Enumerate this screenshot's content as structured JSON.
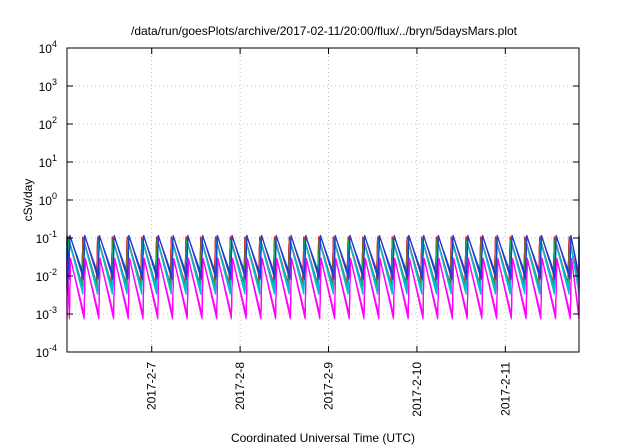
{
  "chart_data": {
    "type": "line",
    "title": "/data/run/goesPlots/archive/2017-02-11/20:00/flux/../bryn/5daysMars.plot",
    "xlabel": "Coordinated Universal Time (UTC)",
    "ylabel": "cSv/day",
    "yscale": "log",
    "ylim": [
      0.0001,
      10000
    ],
    "yticks": [
      {
        "value": 0.0001,
        "base": "10",
        "exp": "-4"
      },
      {
        "value": 0.001,
        "base": "10",
        "exp": "-3"
      },
      {
        "value": 0.01,
        "base": "10",
        "exp": "-2"
      },
      {
        "value": 0.1,
        "base": "10",
        "exp": "-1"
      },
      {
        "value": 1,
        "base": "10",
        "exp": "0"
      },
      {
        "value": 10,
        "base": "10",
        "exp": "1"
      },
      {
        "value": 100,
        "base": "10",
        "exp": "2"
      },
      {
        "value": 1000,
        "base": "10",
        "exp": "3"
      },
      {
        "value": 10000,
        "base": "10",
        "exp": "4"
      }
    ],
    "xlim": [
      "2017-02-06 01:00",
      "2017-02-11 20:00"
    ],
    "xticks": [
      "2017-2-7",
      "2017-2-8",
      "2017-2-9",
      "2017-2-10",
      "2017-2-11"
    ],
    "grid": true,
    "pattern": {
      "cycles_per_day": 6,
      "note_periodic": "sawtooth"
    },
    "series": [
      {
        "color": "#d62728",
        "peak": 0.11,
        "trough": 0.006
      },
      {
        "color": "#2ca02c",
        "peak": 0.09,
        "trough": 0.005
      },
      {
        "color": "#00bcd4",
        "peak": 0.08,
        "trough": 0.004
      },
      {
        "color": "#1f3fd0",
        "peak": 0.12,
        "trough": 0.01
      },
      {
        "color": "#ff00ff",
        "peak": 0.03,
        "trough": 0.0009
      }
    ]
  }
}
